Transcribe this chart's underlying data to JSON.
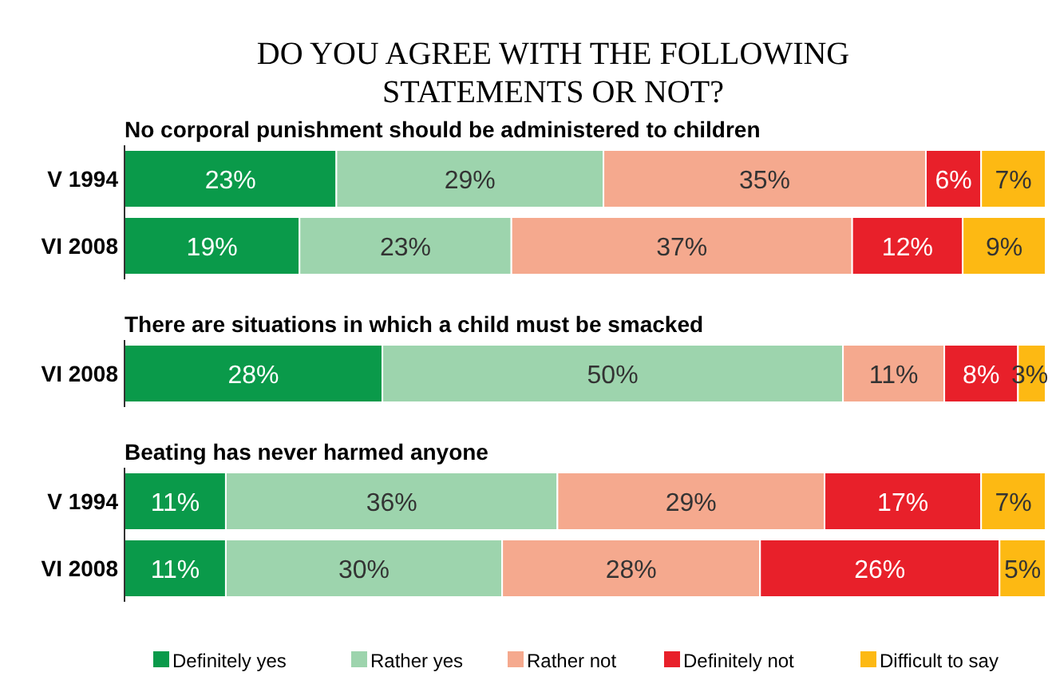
{
  "chart_data": [
    {
      "type": "bar",
      "orientation": "horizontal",
      "stacked": true,
      "title": "DO YOU AGREE WITH THE FOLLOWING STATEMENTS OR NOT?",
      "subtitle": "No corporal punishment should be administered to children",
      "categories": [
        "V 1994",
        "VI 2008"
      ],
      "xlim": [
        0,
        100
      ],
      "tick_labels": "y",
      "legend": false,
      "series": [
        {
          "color": "#0a9a4a",
          "values": [
            23,
            19
          ],
          "value_labels": [
            "23%",
            "19%"
          ]
        },
        {
          "color": "#9dd4ad",
          "values": [
            29,
            23
          ],
          "value_labels": [
            "29%",
            "23%"
          ]
        },
        {
          "color": "#f5a98e",
          "values": [
            35,
            37
          ],
          "value_labels": [
            "35%",
            "37%"
          ]
        },
        {
          "color": "#e8202a",
          "values": [
            6,
            12
          ],
          "value_labels": [
            "6%",
            "12%"
          ]
        },
        {
          "color": "#fdb913",
          "values": [
            7,
            9
          ],
          "value_labels": [
            "7%",
            "9%"
          ]
        }
      ]
    },
    {
      "type": "bar",
      "orientation": "horizontal",
      "stacked": true,
      "subtitle": "There are situations in which a child must be smacked",
      "categories": [
        "VI 2008"
      ],
      "xlim": [
        0,
        100
      ],
      "tick_labels": "y",
      "legend": false,
      "series": [
        {
          "color": "#0a9a4a",
          "values": [
            28
          ],
          "value_labels": [
            "28%"
          ]
        },
        {
          "color": "#9dd4ad",
          "values": [
            50
          ],
          "value_labels": [
            "50%"
          ]
        },
        {
          "color": "#f5a98e",
          "values": [
            11
          ],
          "value_labels": [
            "11%"
          ]
        },
        {
          "color": "#e8202a",
          "values": [
            8
          ],
          "value_labels": [
            "8%"
          ]
        },
        {
          "color": "#fdb913",
          "values": [
            3
          ],
          "value_labels": [
            "3%"
          ]
        }
      ]
    },
    {
      "type": "bar",
      "orientation": "horizontal",
      "stacked": true,
      "subtitle": "Beating has never harmed anyone",
      "categories": [
        "V 1994",
        "VI 2008"
      ],
      "xlim": [
        0,
        100
      ],
      "tick_labels": "y",
      "legend": "bottom",
      "series": [
        {
          "name": "Definitely yes",
          "color": "#0a9a4a",
          "values": [
            11,
            11
          ],
          "value_labels": [
            "11%",
            "11%"
          ]
        },
        {
          "name": "Rather yes",
          "color": "#9dd4ad",
          "values": [
            36,
            30
          ],
          "value_labels": [
            "36%",
            "30%"
          ]
        },
        {
          "name": "Rather not",
          "color": "#f5a98e",
          "values": [
            29,
            28
          ],
          "value_labels": [
            "29%",
            "28%"
          ]
        },
        {
          "name": "Definitely not",
          "color": "#e8202a",
          "values": [
            17,
            26
          ],
          "value_labels": [
            "17%",
            "26%"
          ]
        },
        {
          "name": "Difficult to say",
          "color": "#fdb913",
          "values": [
            7,
            5
          ],
          "value_labels": [
            "7%",
            "5%"
          ]
        }
      ]
    }
  ]
}
